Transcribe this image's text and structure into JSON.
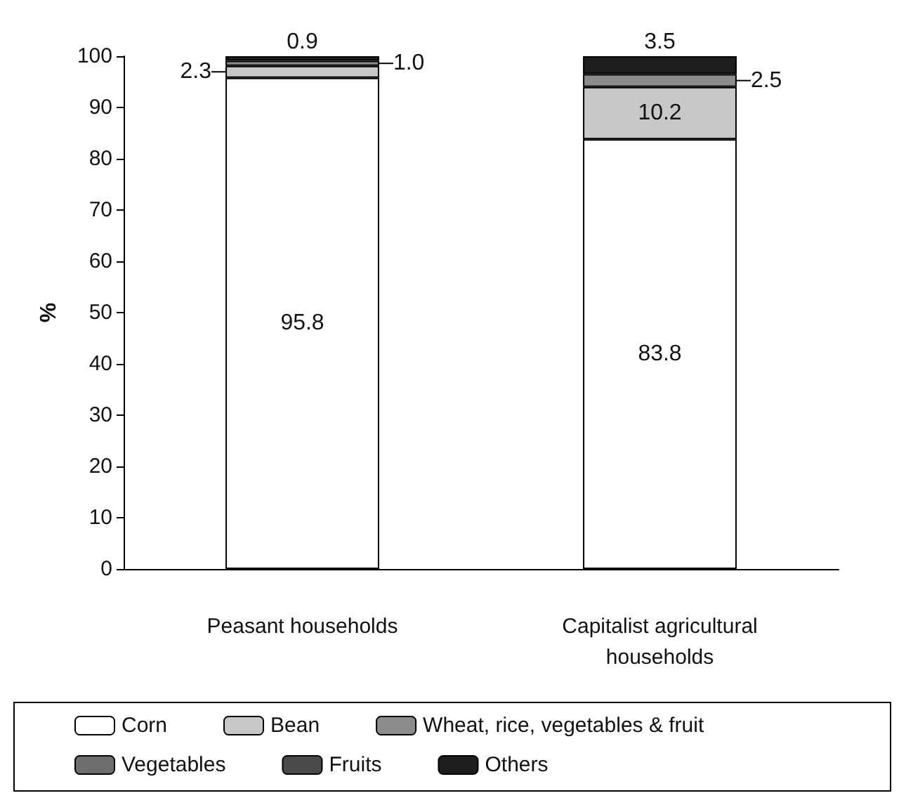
{
  "chart_data": {
    "type": "bar",
    "stacked": true,
    "ylabel": "%",
    "categories": [
      "Peasant households",
      "Capitalist agricultural\nhouseholds"
    ],
    "series": [
      {
        "name": "Corn",
        "color": "#ffffff",
        "values": [
          95.8,
          83.8
        ],
        "value_labels": [
          "95.8",
          "83.8"
        ]
      },
      {
        "name": "Bean",
        "color": "#c8c8c8",
        "values": [
          2.3,
          10.2
        ],
        "value_labels": [
          "2.3",
          "10.2"
        ]
      },
      {
        "name": "Wheat, rice, vegetables & fruit",
        "color": "#8c8c8c",
        "values": [
          1.0,
          2.5
        ],
        "value_labels": [
          "1.0",
          "2.5"
        ]
      },
      {
        "name": "Vegetables",
        "color": "#6e6e6e",
        "values": [
          null,
          null
        ]
      },
      {
        "name": "Fruits",
        "color": "#4a4a4a",
        "values": [
          null,
          null
        ]
      },
      {
        "name": "Others",
        "color": "#1e1e1e",
        "values": [
          0.9,
          3.5
        ],
        "value_labels": [
          "0.9",
          "3.5"
        ]
      }
    ],
    "ylim": [
      0,
      100
    ],
    "yticks": [
      0,
      10,
      20,
      30,
      40,
      50,
      60,
      70,
      80,
      90,
      100
    ],
    "grid": false,
    "legend": "bottom"
  }
}
